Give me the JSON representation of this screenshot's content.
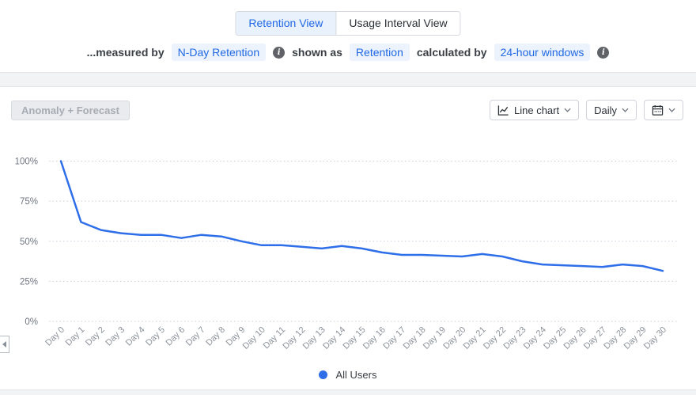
{
  "header": {
    "tabs": [
      {
        "label": "Retention View",
        "active": true
      },
      {
        "label": "Usage Interval View",
        "active": false
      }
    ],
    "measured_line": {
      "prefix": "...measured by",
      "metric_chip": "N-Day Retention",
      "shown_as_label": "shown as",
      "shown_as_chip": "Retention",
      "calculated_by_label": "calculated by",
      "window_chip": "24-hour windows"
    }
  },
  "toolbar": {
    "anomaly_button": "Anomaly + Forecast",
    "chart_type_button": "Line chart",
    "interval_button": "Daily"
  },
  "chart_data": {
    "type": "line",
    "title": "",
    "x": [
      "Day 0",
      "Day 1",
      "Day 2",
      "Day 3",
      "Day 4",
      "Day 5",
      "Day 6",
      "Day 7",
      "Day 8",
      "Day 9",
      "Day 10",
      "Day 11",
      "Day 12",
      "Day 13",
      "Day 14",
      "Day 15",
      "Day 16",
      "Day 17",
      "Day 18",
      "Day 19",
      "Day 20",
      "Day 21",
      "Day 22",
      "Day 23",
      "Day 24",
      "Day 25",
      "Day 26",
      "Day 27",
      "Day 28",
      "Day 29",
      "Day 30"
    ],
    "series": [
      {
        "name": "All Users",
        "color": "#2e6ee8",
        "values": [
          100,
          62,
          57,
          55,
          54,
          54,
          52,
          54,
          53,
          50,
          47.5,
          47.5,
          46.5,
          45.5,
          47,
          45.5,
          43,
          41.5,
          41.5,
          41,
          40.5,
          42,
          40.5,
          37.5,
          35.5,
          35,
          34.5,
          34,
          35.5,
          34.5,
          31.5
        ]
      }
    ],
    "y_ticks": [
      {
        "label": "100%",
        "value": 100
      },
      {
        "label": "75%",
        "value": 75
      },
      {
        "label": "50%",
        "value": 50
      },
      {
        "label": "25%",
        "value": 25
      },
      {
        "label": "0%",
        "value": 0
      }
    ],
    "ylim": [
      0,
      100
    ],
    "grid": "horizontal-dotted",
    "legend_position": "bottom"
  },
  "legend": {
    "items": [
      {
        "label": "All Users",
        "color": "#2e6ee8"
      }
    ]
  },
  "colors": {
    "accent_blue": "#2068e4",
    "line_blue": "#2e6ee8",
    "chip_bg": "#ecf3fd",
    "grid_line": "#c7d0db",
    "y_label": "#6e7580",
    "x_label": "#8c929b"
  }
}
